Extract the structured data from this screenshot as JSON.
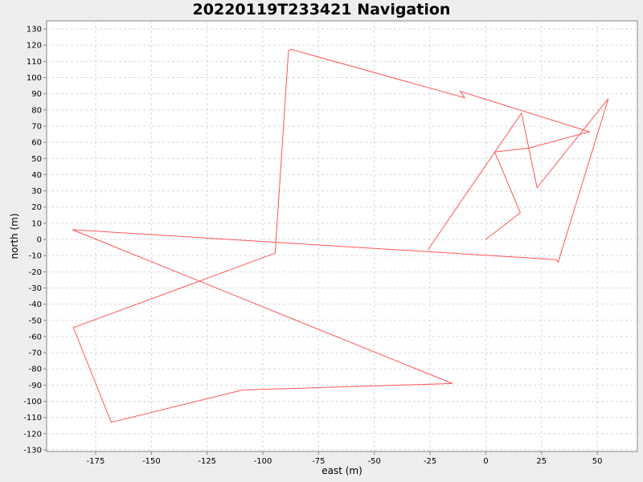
{
  "chart_data": {
    "type": "line",
    "title": "20220119T233421 Navigation",
    "xlabel": "east (m)",
    "ylabel": "north (m)",
    "xlim": [
      -197,
      68
    ],
    "ylim": [
      -131,
      135
    ],
    "xticks": [
      -175,
      -150,
      -125,
      -100,
      -75,
      -50,
      -25,
      0,
      25,
      50
    ],
    "yticks": [
      130,
      120,
      110,
      100,
      90,
      80,
      70,
      60,
      50,
      40,
      30,
      20,
      10,
      0,
      -10,
      -20,
      -30,
      -40,
      -50,
      -60,
      -70,
      -80,
      -90,
      -100,
      -110,
      -120,
      -130
    ],
    "grid": true,
    "series": [
      {
        "color": "#ff5555",
        "points": [
          [
            0,
            0
          ],
          [
            15.5,
            16.5
          ],
          [
            4,
            54
          ],
          [
            19.5,
            56.5
          ],
          [
            46.5,
            66.5
          ],
          [
            -11.5,
            91.5
          ],
          [
            -9.5,
            87.5
          ],
          [
            -87.5,
            117.5
          ],
          [
            -88.5,
            116.5
          ],
          [
            -94.5,
            -8.5
          ],
          [
            -185,
            -54.5
          ],
          [
            -168,
            -113
          ],
          [
            -109,
            -93
          ],
          [
            -15,
            -89
          ],
          [
            -185.5,
            6
          ],
          [
            31.5,
            -12.5
          ],
          [
            32.5,
            -14
          ],
          [
            55,
            87
          ],
          [
            23,
            32
          ],
          [
            16,
            78
          ],
          [
            -26,
            -6.5
          ]
        ]
      }
    ]
  }
}
